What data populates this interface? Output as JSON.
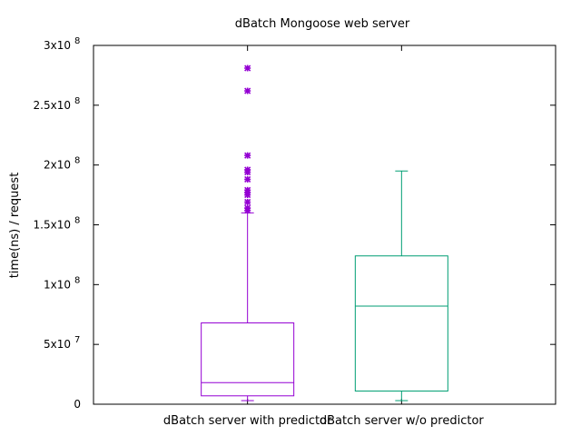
{
  "chart_data": {
    "type": "box",
    "title": "dBatch Mongoose web server",
    "xlabel": "",
    "ylabel": "time(ns) / request",
    "ylim": [
      0,
      300000000
    ],
    "yticks": [
      {
        "value": 0,
        "mantissa": "0",
        "exp": ""
      },
      {
        "value": 50000000,
        "mantissa": "5x10",
        "exp": "7"
      },
      {
        "value": 100000000,
        "mantissa": "1x10",
        "exp": "8"
      },
      {
        "value": 150000000,
        "mantissa": "1.5x10",
        "exp": "8"
      },
      {
        "value": 200000000,
        "mantissa": "2x10",
        "exp": "8"
      },
      {
        "value": 250000000,
        "mantissa": "2.5x10",
        "exp": "8"
      },
      {
        "value": 300000000,
        "mantissa": "3x10",
        "exp": "8"
      }
    ],
    "grid": false,
    "legend": "none",
    "series": [
      {
        "category": "dBatch server with predictor",
        "color": "#9400d3",
        "whisker_low": 3000000,
        "q1": 7000000,
        "median": 18000000,
        "q3": 68000000,
        "whisker_high": 160000000,
        "outliers": [
          162000000,
          164000000,
          169000000,
          175000000,
          177000000,
          179000000,
          188000000,
          194000000,
          196000000,
          208000000,
          262000000,
          281000000
        ]
      },
      {
        "category": "dBatch server w/o predictor",
        "color": "#009e73",
        "whisker_low": 3000000,
        "q1": 11000000,
        "median": 82000000,
        "q3": 124000000,
        "whisker_high": 195000000,
        "outliers": []
      }
    ]
  }
}
